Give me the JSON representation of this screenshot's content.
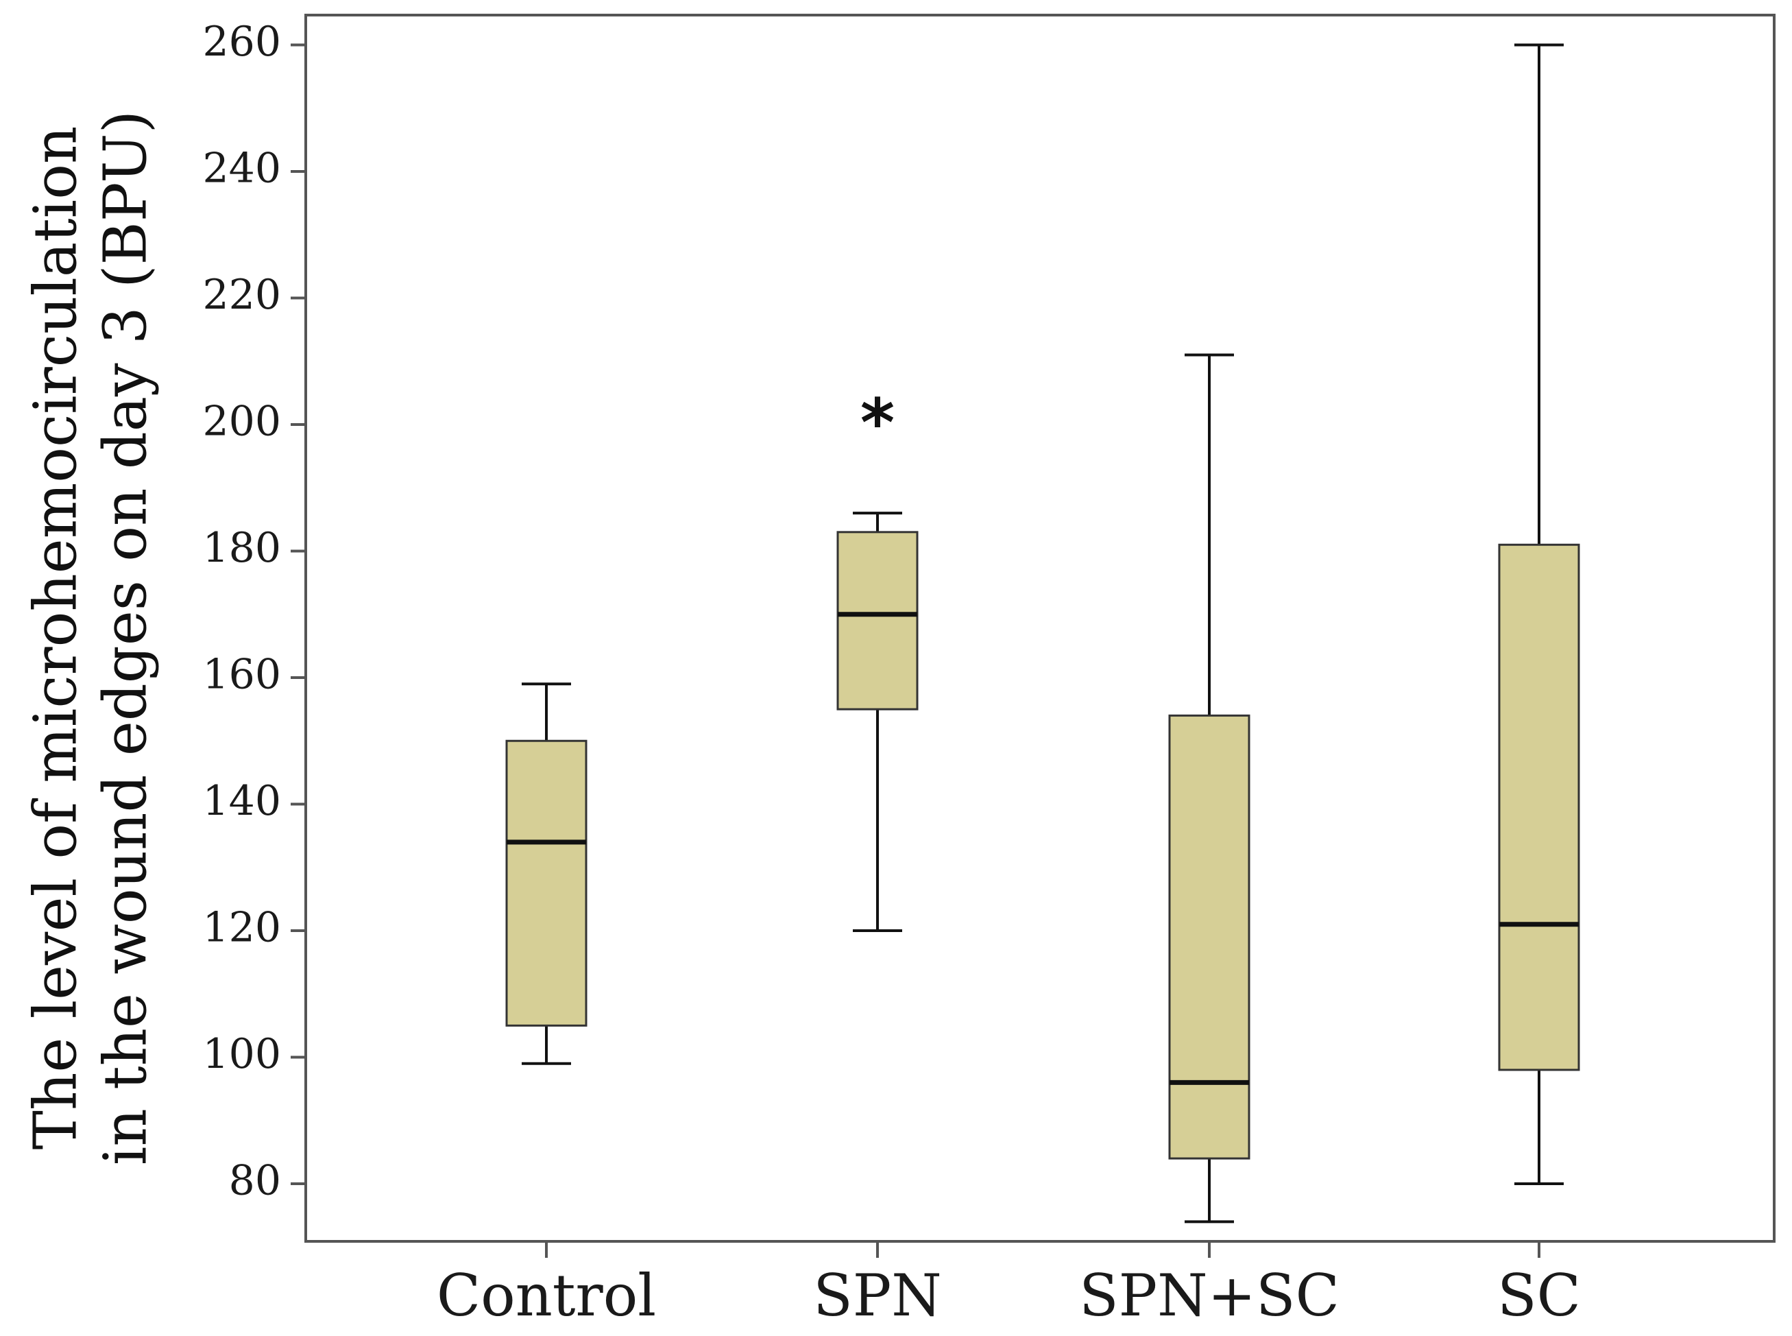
{
  "chart_data": {
    "type": "boxplot",
    "title": "",
    "xlabel": "",
    "ylabel_lines": [
      "The level of microhemocirculation",
      "in the wound edges on day 3 (BPU)"
    ],
    "ylim": [
      70,
      264
    ],
    "yticks": [
      80,
      100,
      120,
      140,
      160,
      180,
      200,
      220,
      240,
      260
    ],
    "categories": [
      "Control",
      "SPN",
      "SPN+SC",
      "SC"
    ],
    "boxes": [
      {
        "name": "Control",
        "whisker_low": 99,
        "q1": 105,
        "median": 134,
        "q3": 150,
        "whisker_high": 159
      },
      {
        "name": "SPN",
        "whisker_low": 120,
        "q1": 155,
        "median": 170,
        "q3": 183,
        "whisker_high": 186
      },
      {
        "name": "SPN+SC",
        "whisker_low": 74,
        "q1": 84,
        "median": 96,
        "q3": 154,
        "whisker_high": 211
      },
      {
        "name": "SC",
        "whisker_low": 80,
        "q1": 98,
        "median": 121,
        "q3": 181,
        "whisker_high": 260
      }
    ],
    "annotations": [
      {
        "text": "*",
        "category": "SPN",
        "y": 201
      }
    ],
    "box_color": "#d6cf96",
    "line_color": "#111111",
    "frame_color": "#555555"
  }
}
